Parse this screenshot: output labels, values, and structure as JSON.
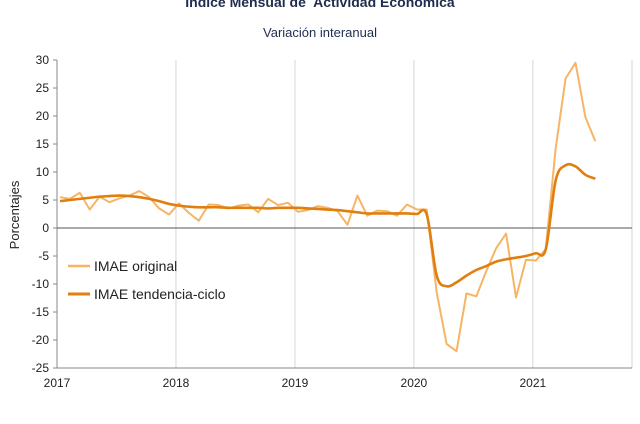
{
  "chart_data": {
    "type": "line",
    "title": "Indice Mensual de  Actividad Económica",
    "subtitle": "Variación interanual",
    "ylabel": "Porcentajes",
    "xlabel": "",
    "ylim": [
      -25,
      30
    ],
    "yticks": [
      30,
      25,
      20,
      15,
      10,
      5,
      0,
      -5,
      -10,
      -15,
      -20,
      -25
    ],
    "xticks": [
      "2017",
      "2018",
      "2019",
      "2020",
      "2021"
    ],
    "grid": "vertical",
    "legend_position": "left-middle",
    "x": [
      "2017-01",
      "2017-02",
      "2017-03",
      "2017-04",
      "2017-05",
      "2017-06",
      "2017-07",
      "2017-08",
      "2017-09",
      "2017-10",
      "2017-11",
      "2017-12",
      "2018-01",
      "2018-02",
      "2018-03",
      "2018-04",
      "2018-05",
      "2018-06",
      "2018-07",
      "2018-08",
      "2018-09",
      "2018-10",
      "2018-11",
      "2018-12",
      "2019-01",
      "2019-02",
      "2019-03",
      "2019-04",
      "2019-05",
      "2019-06",
      "2019-07",
      "2019-08",
      "2019-09",
      "2019-10",
      "2019-11",
      "2019-12",
      "2020-01",
      "2020-02",
      "2020-03",
      "2020-04",
      "2020-05",
      "2020-06",
      "2020-07",
      "2020-08",
      "2020-09",
      "2020-10",
      "2020-11",
      "2020-12",
      "2021-01",
      "2021-02",
      "2021-03",
      "2021-04",
      "2021-05",
      "2021-06",
      "2021-07"
    ],
    "series": [
      {
        "name": "IMAE original",
        "color": "#f5b565",
        "values": [
          5.5,
          5.2,
          6.3,
          3.3,
          5.6,
          4.6,
          5.3,
          5.8,
          6.6,
          5.5,
          3.5,
          2.4,
          4.4,
          2.7,
          1.3,
          4.2,
          4.1,
          3.5,
          4.0,
          4.2,
          2.8,
          5.2,
          4.1,
          4.5,
          2.9,
          3.2,
          3.9,
          3.6,
          3.0,
          0.6,
          5.8,
          2.2,
          3.1,
          3.0,
          2.2,
          4.2,
          3.3,
          3.3,
          -11.5,
          -20.7,
          -22.0,
          -11.7,
          -12.2,
          -7.7,
          -3.6,
          -1.0,
          -12.4,
          -5.7,
          -5.8,
          -3.8,
          14.2,
          26.7,
          29.5,
          19.8,
          15.5
        ]
      },
      {
        "name": "IMAE tendencia-ciclo",
        "color": "#e07f10",
        "values": [
          4.8,
          5.0,
          5.2,
          5.4,
          5.6,
          5.7,
          5.8,
          5.7,
          5.5,
          5.2,
          4.8,
          4.3,
          4.0,
          3.8,
          3.7,
          3.7,
          3.7,
          3.6,
          3.6,
          3.6,
          3.6,
          3.5,
          3.6,
          3.6,
          3.6,
          3.5,
          3.4,
          3.3,
          3.2,
          3.0,
          2.8,
          2.6,
          2.6,
          2.6,
          2.6,
          2.6,
          2.5,
          2.4,
          -8.5,
          -10.4,
          -9.7,
          -8.5,
          -7.5,
          -6.8,
          -6.0,
          -5.6,
          -5.3,
          -5.0,
          -4.5,
          -3.8,
          8.5,
          11.2,
          11.0,
          9.5,
          8.8
        ]
      }
    ]
  }
}
